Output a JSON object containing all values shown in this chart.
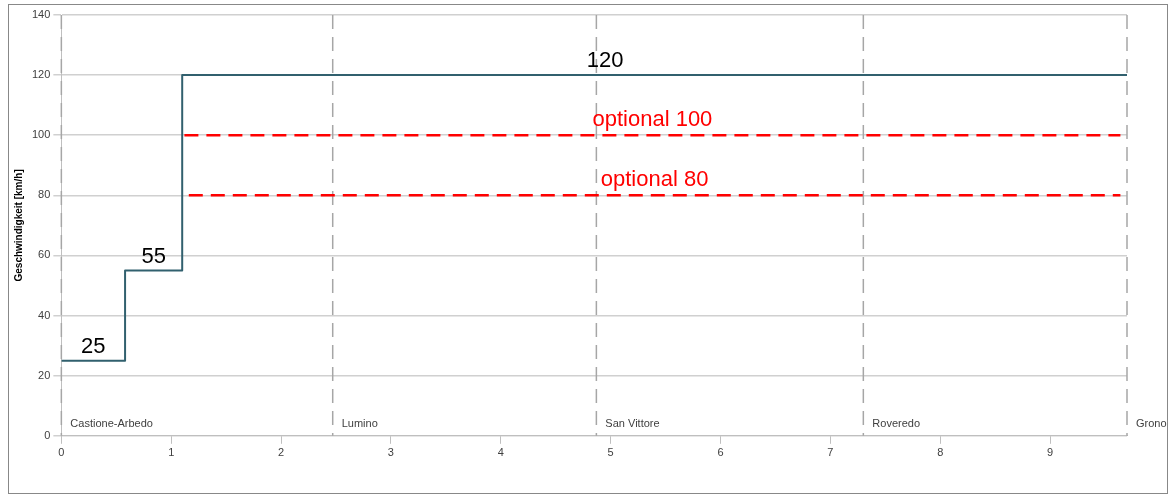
{
  "chart_data": {
    "type": "step",
    "ylabel": "Geschwindigkeit [km/h]",
    "xlim": [
      0,
      9.7
    ],
    "xticks": [
      0,
      1,
      2,
      3,
      4,
      5,
      6,
      7,
      8,
      9
    ],
    "ylim": [
      0,
      140
    ],
    "yticks": [
      0,
      20,
      40,
      60,
      80,
      100,
      120,
      140
    ],
    "grid": "y",
    "legend": false,
    "marker": "none",
    "series": [
      {
        "type": "step",
        "color": "#31606e",
        "x": [
          0,
          0.58,
          1.1,
          9.7
        ],
        "values": [
          25,
          55,
          120,
          120
        ],
        "value_labels": [
          "25",
          "55",
          null,
          null
        ]
      },
      {
        "type": "line",
        "name": "optional 100",
        "color": "#ff0000",
        "line_style": "dashed",
        "x": [
          1.12,
          9.64
        ],
        "values": [
          100,
          100
        ]
      },
      {
        "type": "line",
        "name": "optional 80",
        "color": "#ff0000",
        "line_style": "dashed",
        "x": [
          1.16,
          9.64
        ],
        "values": [
          80,
          80
        ]
      }
    ],
    "annotations": [
      {
        "text": "120",
        "x": 4.95,
        "y": 120
      }
    ],
    "ref_lines": [
      {
        "axis": "x",
        "value": 0,
        "label": "Castione-Arbedo",
        "color": "#a6a6a6",
        "line_style": "dashed"
      },
      {
        "axis": "x",
        "value": 2.47,
        "label": "Lumino",
        "color": "#a6a6a6",
        "line_style": "dashed"
      },
      {
        "axis": "x",
        "value": 4.87,
        "label": "San Vittore",
        "color": "#a6a6a6",
        "line_style": "dashed"
      },
      {
        "axis": "x",
        "value": 7.3,
        "label": "Roveredo",
        "color": "#a6a6a6",
        "line_style": "dashed"
      },
      {
        "axis": "x",
        "value": 9.7,
        "label": "Grono",
        "color": "#a6a6a6",
        "line_style": "dashed"
      }
    ]
  }
}
